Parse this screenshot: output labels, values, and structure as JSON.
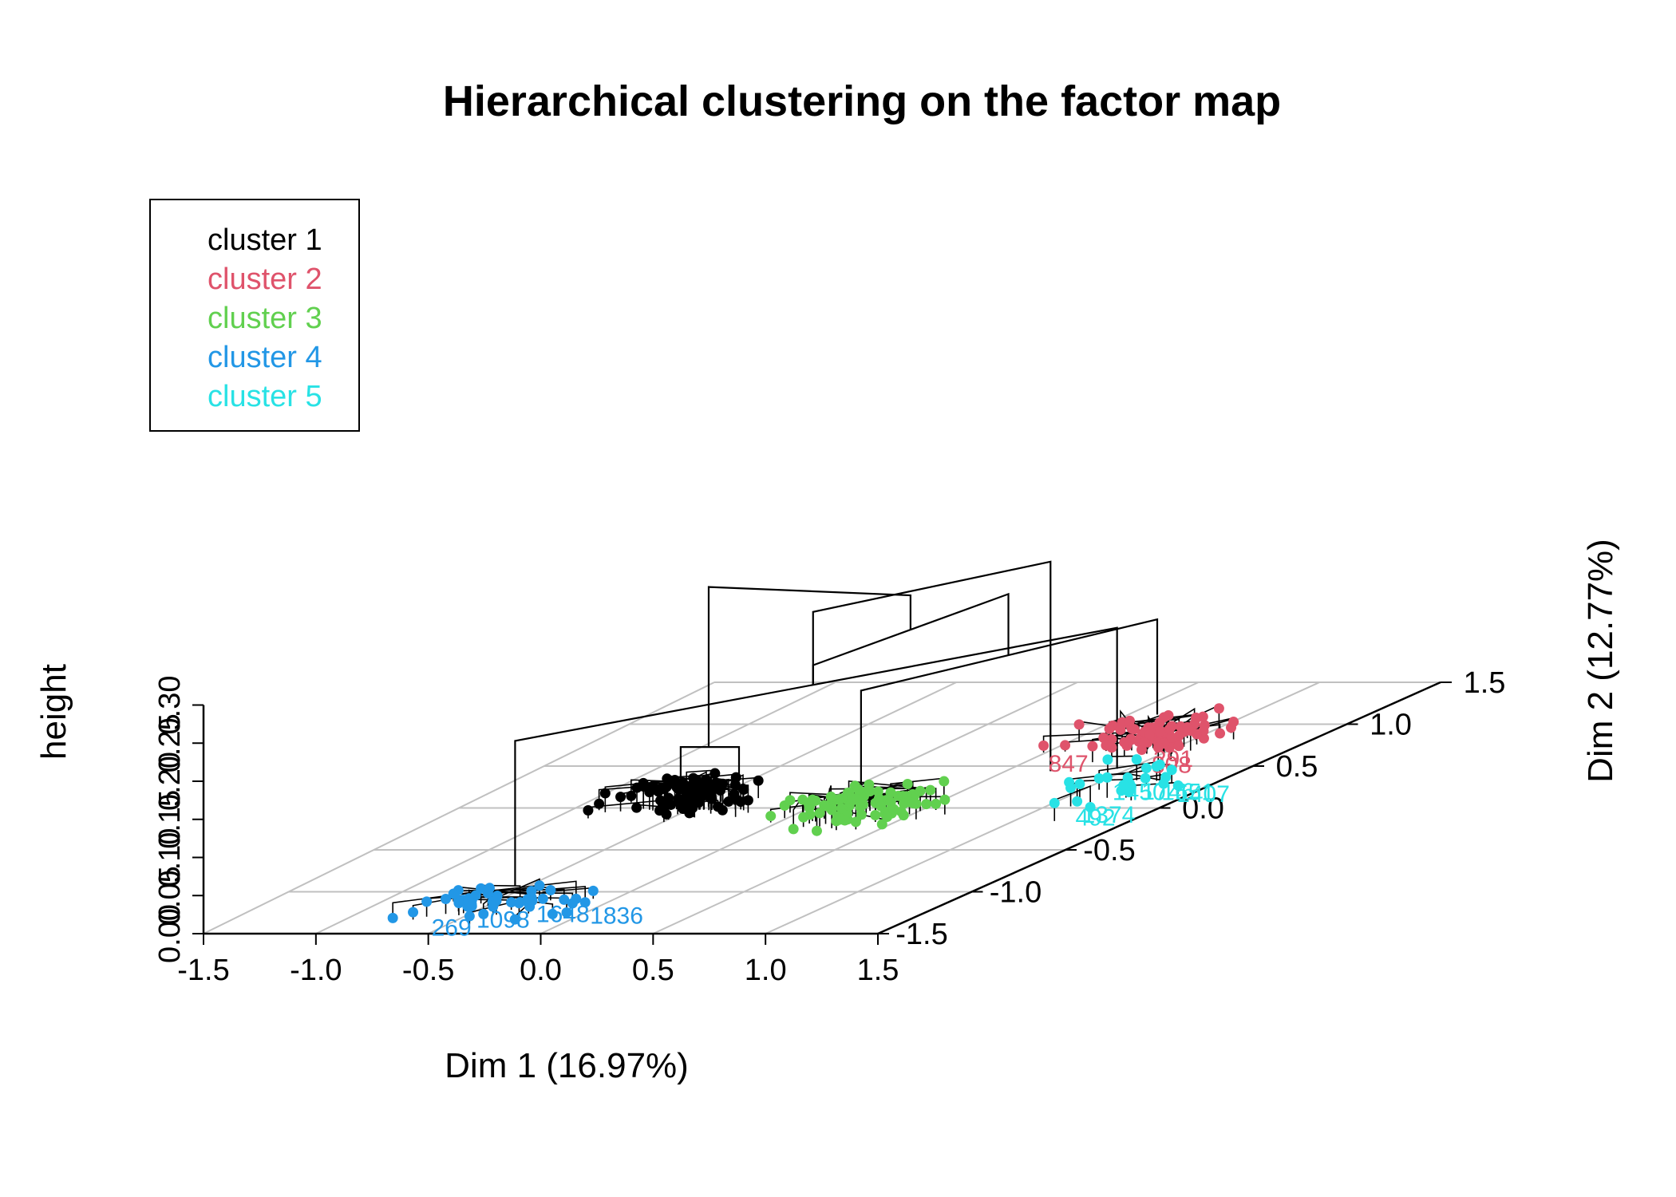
{
  "chart_data": {
    "type": "scatter",
    "title": "Hierarchical clustering on the factor map",
    "xlabel": "Dim 1 (16.97%)",
    "ylabel": "Dim 2 (12.77%)",
    "zlabel": "height",
    "xlim": [
      -1.5,
      1.5
    ],
    "ylim": [
      -1.5,
      1.5
    ],
    "zlim": [
      0,
      0.3
    ],
    "x_ticks": [
      "-1.5",
      "-1.0",
      "-0.5",
      "0.0",
      "0.5",
      "1.0",
      "1.5"
    ],
    "y_ticks": [
      "-1.5",
      "-1.0",
      "-0.5",
      "0.0",
      "0.5",
      "1.0",
      "1.5"
    ],
    "z_ticks": [
      "0.00",
      "0.05",
      "0.10",
      "0.15",
      "0.20",
      "0.25",
      "0.30"
    ],
    "grid": true,
    "legend_position": "top-left",
    "legend": [
      {
        "label": "cluster 1",
        "color": "#000000"
      },
      {
        "label": "cluster 2",
        "color": "#DF536B"
      },
      {
        "label": "cluster 3",
        "color": "#61D04F"
      },
      {
        "label": "cluster 4",
        "color": "#2297E6"
      },
      {
        "label": "cluster 5",
        "color": "#28E2E5"
      }
    ],
    "clusters": [
      {
        "name": "cluster 1",
        "color": "#000000",
        "center": [
          -0.55,
          0.0
        ],
        "spread": [
          0.55,
          0.22
        ],
        "count": 90,
        "merge_height": 0.035,
        "labels": []
      },
      {
        "name": "cluster 2",
        "color": "#DF536B",
        "center": [
          0.9,
          0.75
        ],
        "spread": [
          0.55,
          0.3
        ],
        "count": 75,
        "merge_height": 0.03,
        "labels": [
          "291",
          "847",
          "808"
        ]
      },
      {
        "name": "cluster 3",
        "color": "#61D04F",
        "center": [
          0.3,
          -0.1
        ],
        "spread": [
          0.55,
          0.3
        ],
        "count": 85,
        "merge_height": 0.03,
        "labels": []
      },
      {
        "name": "cluster 4",
        "color": "#2297E6",
        "center": [
          -0.35,
          -1.2
        ],
        "spread": [
          0.6,
          0.3
        ],
        "count": 45,
        "merge_height": 0.02,
        "labels": [
          "269",
          "1836",
          "1648",
          "1098"
        ]
      },
      {
        "name": "cluster 5",
        "color": "#28E2E5",
        "center": [
          1.2,
          0.15
        ],
        "spread": [
          0.35,
          0.45
        ],
        "count": 25,
        "merge_height": 0.03,
        "labels": [
          "1746",
          "1450",
          "1407",
          "1651",
          "492",
          "1374"
        ]
      }
    ],
    "dendrogram_heights": {
      "top": 0.315,
      "upper_left": 0.29,
      "upper_right": 0.165,
      "cluster2_3": 0.245,
      "cluster4_5": 0.22,
      "cluster1_sub": 0.08
    }
  }
}
